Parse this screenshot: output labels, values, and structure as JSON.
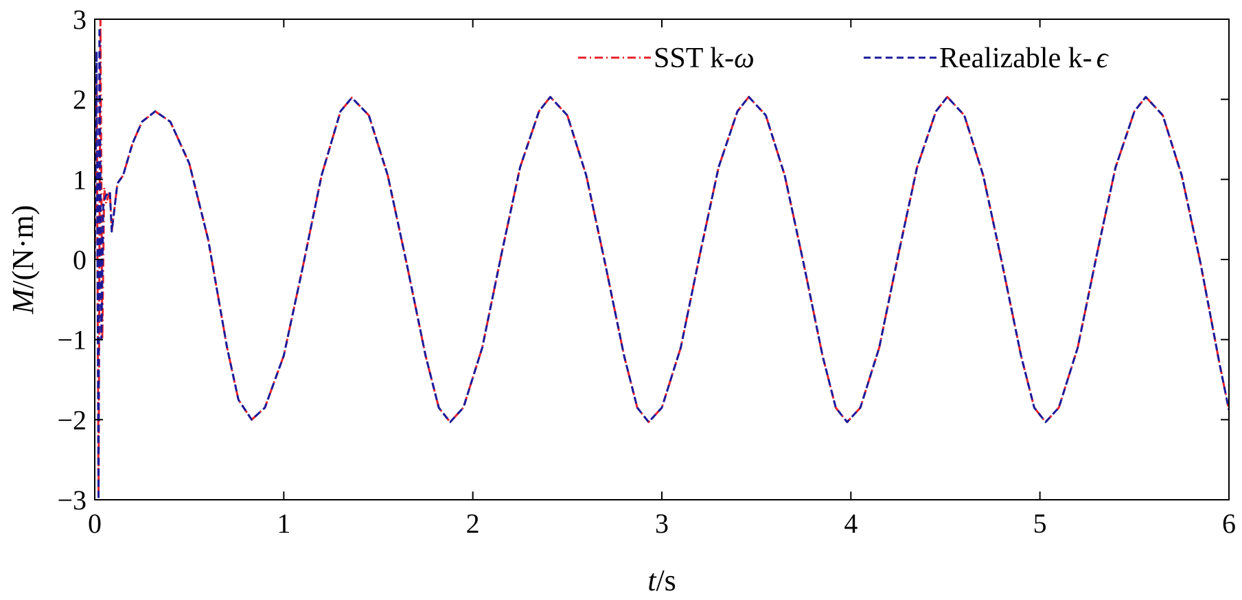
{
  "chart_data": {
    "type": "line",
    "title": "",
    "xlabel": {
      "symbol": "t",
      "unit": "/s"
    },
    "ylabel": {
      "symbol": "M",
      "unit": "/(N·m)"
    },
    "xlim": [
      0,
      6
    ],
    "ylim": [
      -3,
      3
    ],
    "xticks": [
      "0",
      "1",
      "2",
      "3",
      "4",
      "5",
      "6"
    ],
    "yticks": [
      "3",
      "2",
      "1",
      "0",
      "-1",
      "-2",
      "-3"
    ],
    "grid": false,
    "legend_placement": "top-right",
    "series": [
      {
        "name_text": "SST k-",
        "name_symbol": "ω",
        "color": "#e8202a",
        "dash": "dash-dot",
        "points": [
          [
            0.0,
            0.0
          ],
          [
            0.01,
            2.3
          ],
          [
            0.02,
            -2.9
          ],
          [
            0.03,
            3.0
          ],
          [
            0.04,
            -1.0
          ],
          [
            0.05,
            0.9
          ],
          [
            0.06,
            0.7
          ],
          [
            0.08,
            0.85
          ],
          [
            0.09,
            0.35
          ],
          [
            0.1,
            0.55
          ],
          [
            0.12,
            0.95
          ],
          [
            0.15,
            1.05
          ],
          [
            0.2,
            1.45
          ],
          [
            0.25,
            1.72
          ],
          [
            0.32,
            1.85
          ],
          [
            0.4,
            1.72
          ],
          [
            0.5,
            1.2
          ],
          [
            0.6,
            0.25
          ],
          [
            0.7,
            -1.1
          ],
          [
            0.76,
            -1.75
          ],
          [
            0.83,
            -2.0
          ],
          [
            0.9,
            -1.85
          ],
          [
            1.0,
            -1.2
          ],
          [
            1.1,
            -0.1
          ],
          [
            1.2,
            1.05
          ],
          [
            1.3,
            1.85
          ],
          [
            1.36,
            2.02
          ],
          [
            1.45,
            1.8
          ],
          [
            1.55,
            1.05
          ],
          [
            1.65,
            -0.05
          ],
          [
            1.75,
            -1.2
          ],
          [
            1.82,
            -1.85
          ],
          [
            1.88,
            -2.03
          ],
          [
            1.95,
            -1.85
          ],
          [
            2.05,
            -1.1
          ],
          [
            2.15,
            0.05
          ],
          [
            2.25,
            1.15
          ],
          [
            2.35,
            1.85
          ],
          [
            2.41,
            2.03
          ],
          [
            2.5,
            1.8
          ],
          [
            2.6,
            1.05
          ],
          [
            2.7,
            -0.05
          ],
          [
            2.8,
            -1.2
          ],
          [
            2.87,
            -1.85
          ],
          [
            2.93,
            -2.03
          ],
          [
            3.0,
            -1.85
          ],
          [
            3.1,
            -1.1
          ],
          [
            3.2,
            0.05
          ],
          [
            3.3,
            1.15
          ],
          [
            3.4,
            1.85
          ],
          [
            3.46,
            2.03
          ],
          [
            3.55,
            1.8
          ],
          [
            3.65,
            1.05
          ],
          [
            3.75,
            -0.05
          ],
          [
            3.85,
            -1.2
          ],
          [
            3.92,
            -1.85
          ],
          [
            3.98,
            -2.03
          ],
          [
            4.05,
            -1.85
          ],
          [
            4.15,
            -1.1
          ],
          [
            4.25,
            0.05
          ],
          [
            4.35,
            1.15
          ],
          [
            4.45,
            1.85
          ],
          [
            4.51,
            2.03
          ],
          [
            4.6,
            1.8
          ],
          [
            4.7,
            1.05
          ],
          [
            4.8,
            -0.05
          ],
          [
            4.9,
            -1.2
          ],
          [
            4.97,
            -1.85
          ],
          [
            5.03,
            -2.03
          ],
          [
            5.1,
            -1.85
          ],
          [
            5.2,
            -1.1
          ],
          [
            5.3,
            0.05
          ],
          [
            5.4,
            1.15
          ],
          [
            5.5,
            1.85
          ],
          [
            5.56,
            2.03
          ],
          [
            5.65,
            1.8
          ],
          [
            5.75,
            1.05
          ],
          [
            5.85,
            -0.05
          ],
          [
            5.95,
            -1.3
          ],
          [
            6.0,
            -1.88
          ]
        ]
      },
      {
        "name_text": "Realizable k-",
        "name_symbol": "ϵ",
        "color": "#1a1a9a",
        "dash": "dashed",
        "points": [
          [
            0.0,
            0.0
          ],
          [
            0.01,
            2.6
          ],
          [
            0.02,
            -3.0
          ],
          [
            0.025,
            2.9
          ],
          [
            0.035,
            -1.0
          ],
          [
            0.045,
            0.7
          ],
          [
            0.06,
            0.8
          ],
          [
            0.08,
            0.85
          ],
          [
            0.09,
            0.35
          ],
          [
            0.1,
            0.55
          ],
          [
            0.12,
            0.95
          ],
          [
            0.15,
            1.05
          ],
          [
            0.2,
            1.45
          ],
          [
            0.25,
            1.72
          ],
          [
            0.32,
            1.85
          ],
          [
            0.4,
            1.72
          ],
          [
            0.5,
            1.2
          ],
          [
            0.6,
            0.25
          ],
          [
            0.7,
            -1.1
          ],
          [
            0.76,
            -1.75
          ],
          [
            0.83,
            -2.0
          ],
          [
            0.9,
            -1.85
          ],
          [
            1.0,
            -1.2
          ],
          [
            1.1,
            -0.1
          ],
          [
            1.2,
            1.05
          ],
          [
            1.3,
            1.85
          ],
          [
            1.36,
            2.02
          ],
          [
            1.45,
            1.8
          ],
          [
            1.55,
            1.05
          ],
          [
            1.65,
            -0.05
          ],
          [
            1.75,
            -1.2
          ],
          [
            1.82,
            -1.85
          ],
          [
            1.88,
            -2.03
          ],
          [
            1.95,
            -1.85
          ],
          [
            2.05,
            -1.1
          ],
          [
            2.15,
            0.05
          ],
          [
            2.25,
            1.15
          ],
          [
            2.35,
            1.85
          ],
          [
            2.41,
            2.03
          ],
          [
            2.5,
            1.8
          ],
          [
            2.6,
            1.05
          ],
          [
            2.7,
            -0.05
          ],
          [
            2.8,
            -1.2
          ],
          [
            2.87,
            -1.85
          ],
          [
            2.93,
            -2.03
          ],
          [
            3.0,
            -1.85
          ],
          [
            3.1,
            -1.1
          ],
          [
            3.2,
            0.05
          ],
          [
            3.3,
            1.15
          ],
          [
            3.4,
            1.85
          ],
          [
            3.46,
            2.03
          ],
          [
            3.55,
            1.8
          ],
          [
            3.65,
            1.05
          ],
          [
            3.75,
            -0.05
          ],
          [
            3.85,
            -1.2
          ],
          [
            3.92,
            -1.85
          ],
          [
            3.98,
            -2.03
          ],
          [
            4.05,
            -1.85
          ],
          [
            4.15,
            -1.1
          ],
          [
            4.25,
            0.05
          ],
          [
            4.35,
            1.15
          ],
          [
            4.45,
            1.85
          ],
          [
            4.51,
            2.03
          ],
          [
            4.6,
            1.8
          ],
          [
            4.7,
            1.05
          ],
          [
            4.8,
            -0.05
          ],
          [
            4.9,
            -1.2
          ],
          [
            4.97,
            -1.85
          ],
          [
            5.03,
            -2.03
          ],
          [
            5.1,
            -1.85
          ],
          [
            5.2,
            -1.1
          ],
          [
            5.3,
            0.05
          ],
          [
            5.4,
            1.15
          ],
          [
            5.5,
            1.85
          ],
          [
            5.56,
            2.03
          ],
          [
            5.65,
            1.8
          ],
          [
            5.75,
            1.05
          ],
          [
            5.85,
            -0.05
          ],
          [
            5.95,
            -1.3
          ],
          [
            6.0,
            -1.88
          ]
        ]
      }
    ]
  }
}
